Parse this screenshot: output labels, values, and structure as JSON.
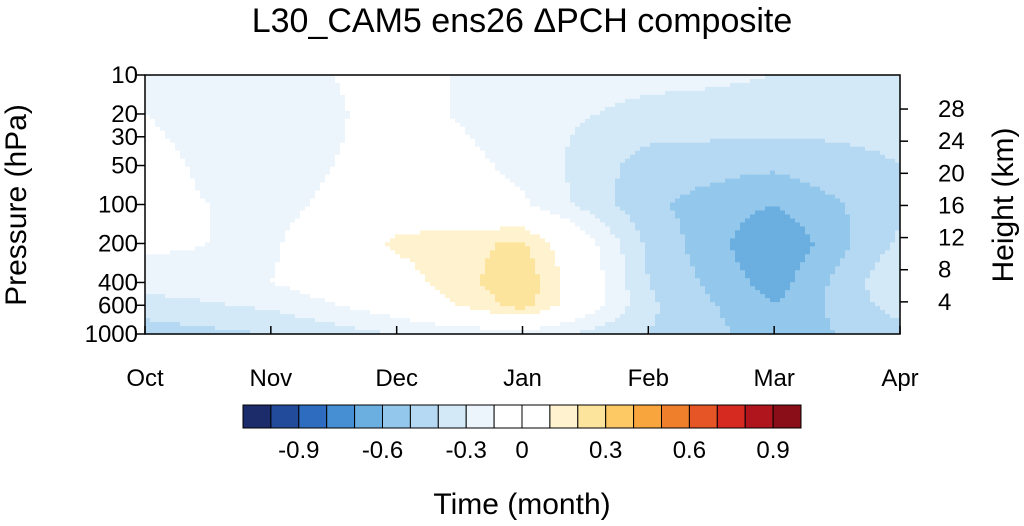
{
  "chart_data": {
    "type": "heatmap",
    "title": "L30_CAM5 ens26 ΔPCH composite",
    "xlabel": "Time (month)",
    "ylabel_left": "Pressure (hPa)",
    "ylabel_right": "Height (km)",
    "x_ticks": [
      "Oct",
      "Nov",
      "Dec",
      "Jan",
      "Feb",
      "Mar",
      "Apr"
    ],
    "y_ticks_pressure": [
      "10",
      "20",
      "30",
      "50",
      "100",
      "200",
      "400",
      "600",
      "1000"
    ],
    "y_ticks_height": [
      "28",
      "24",
      "20",
      "16",
      "12",
      "8",
      "4"
    ],
    "y_scale": "log",
    "ylim_pressure": [
      1000,
      10
    ],
    "colorbar_labels": [
      "-0.9",
      "-0.6",
      "-0.3",
      "0",
      "0.3",
      "0.6",
      "0.9"
    ],
    "colorbar_colors": [
      "#1c2c6a",
      "#234b9c",
      "#2e6cbf",
      "#468fd3",
      "#6baee0",
      "#93c8ec",
      "#b5d9f2",
      "#d4e9f7",
      "#ecf5fc",
      "#ffffff",
      "#ffffff",
      "#fff2cf",
      "#fde49d",
      "#fcc965",
      "#f8a53d",
      "#f07f2b",
      "#e65525",
      "#d62a21",
      "#b0141c",
      "#8a0e17"
    ],
    "levels": [
      -1.0,
      -0.9,
      -0.8,
      -0.7,
      -0.6,
      -0.5,
      -0.4,
      -0.3,
      -0.2,
      -0.1,
      0,
      0.1,
      0.2,
      0.3,
      0.4,
      0.5,
      0.6,
      0.7,
      0.8,
      0.9,
      1.0
    ],
    "x_months": [
      0,
      1,
      2,
      3,
      4,
      5,
      6
    ],
    "field_pressures": [
      10,
      20,
      30,
      50,
      100,
      200,
      400,
      600,
      1000
    ],
    "field": [
      [
        -0.12,
        -0.15,
        -0.05,
        -0.17,
        -0.18,
        -0.2,
        -0.22
      ],
      [
        -0.1,
        -0.18,
        -0.05,
        -0.17,
        -0.22,
        -0.22,
        -0.25
      ],
      [
        -0.08,
        -0.2,
        -0.03,
        -0.15,
        -0.28,
        -0.3,
        -0.28
      ],
      [
        -0.05,
        -0.2,
        0.0,
        -0.13,
        -0.35,
        -0.38,
        -0.3
      ],
      [
        -0.05,
        -0.15,
        0.02,
        -0.08,
        -0.38,
        -0.5,
        -0.32
      ],
      [
        -0.08,
        -0.12,
        0.12,
        0.22,
        -0.32,
        -0.6,
        -0.28
      ],
      [
        -0.15,
        -0.1,
        0.04,
        0.28,
        -0.3,
        -0.55,
        -0.2
      ],
      [
        -0.25,
        -0.18,
        -0.03,
        0.25,
        -0.28,
        -0.5,
        -0.25
      ],
      [
        -0.35,
        -0.3,
        -0.2,
        -0.15,
        -0.3,
        -0.45,
        -0.35
      ]
    ]
  }
}
